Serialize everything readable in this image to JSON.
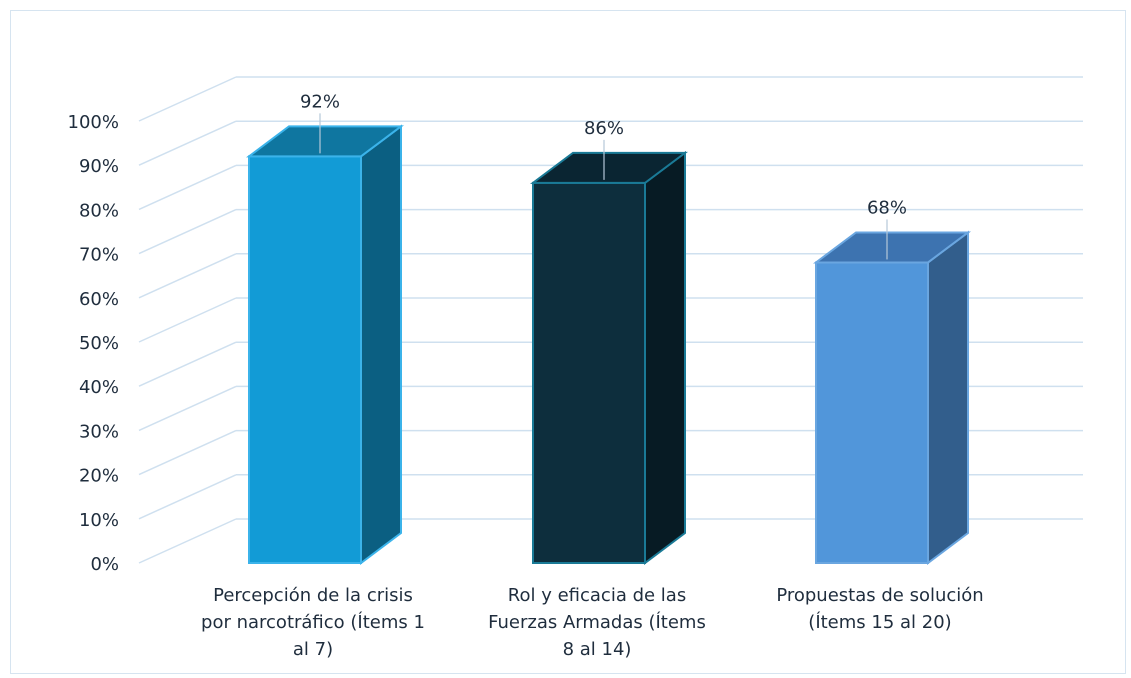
{
  "chart_data": {
    "type": "bar",
    "title": "",
    "xlabel": "",
    "ylabel": "",
    "ylim": [
      0,
      100
    ],
    "yticks": [
      0,
      10,
      20,
      30,
      40,
      50,
      60,
      70,
      80,
      90,
      100
    ],
    "tick_suffix": "%",
    "grid": true,
    "three_d": true,
    "categories": [
      [
        "Percepción de la crisis",
        "por narcotráfico (Ítems 1",
        "al 7)"
      ],
      [
        "Rol y eficacia de las",
        "Fuerzas Armadas (Ítems",
        "8 al 14)"
      ],
      [
        "Propuestas de solución",
        "(Ítems 15 al 20)"
      ]
    ],
    "values": [
      92,
      86,
      68
    ],
    "data_labels": [
      "92%",
      "86%",
      "68%"
    ],
    "colors": [
      {
        "front": "#129bd6",
        "top": "#0f76a0",
        "side": "#0b5f82",
        "edge": "#3bb3ea"
      },
      {
        "front": "#0d2e3d",
        "top": "#0a2532",
        "side": "#071b24",
        "edge": "#1a7a96"
      },
      {
        "front": "#5196da",
        "top": "#3d73b0",
        "side": "#325e8c",
        "edge": "#6aa6e0"
      }
    ],
    "grid_color": "#cfe0ef"
  }
}
